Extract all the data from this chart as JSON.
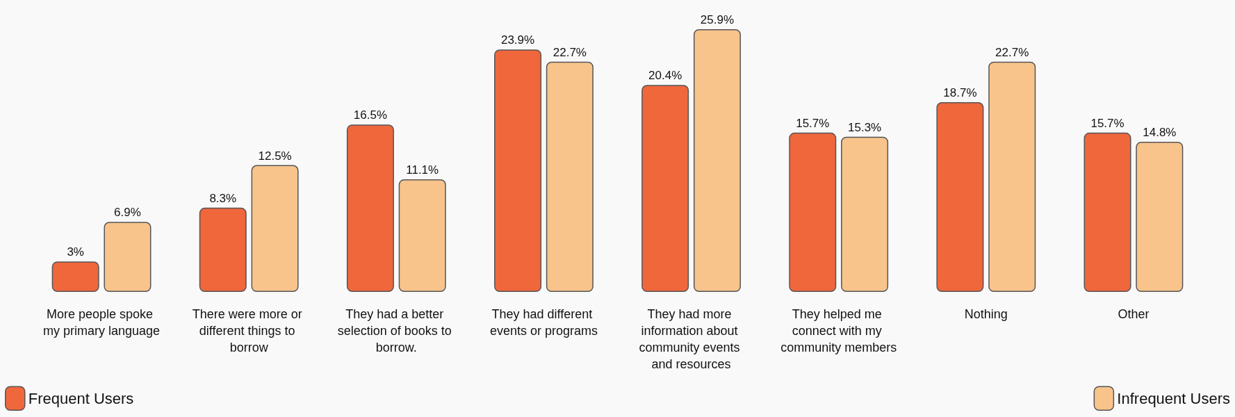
{
  "chart_data": {
    "type": "bar",
    "categories": [
      "More people spoke my primary language",
      "There were more or different things to borrow",
      "They had a better selection of books to borrow.",
      "They had different events or programs",
      "They had more information about community events and resources",
      "They helped me connect with my community members",
      "Nothing",
      "Other"
    ],
    "series": [
      {
        "name": "Frequent Users",
        "color": "#f0673c",
        "values": [
          3,
          8.3,
          16.5,
          23.9,
          20.4,
          15.7,
          18.7,
          15.7
        ],
        "value_labels": [
          "3%",
          "8.3%",
          "16.5%",
          "23.9%",
          "20.4%",
          "15.7%",
          "18.7%",
          "15.7%"
        ]
      },
      {
        "name": "Infrequent Users",
        "color": "#f8c48c",
        "values": [
          6.9,
          12.5,
          11.1,
          22.7,
          25.9,
          15.3,
          22.7,
          14.8
        ],
        "value_labels": [
          "6.9%",
          "12.5%",
          "11.1%",
          "22.7%",
          "25.9%",
          "15.3%",
          "22.7%",
          "14.8%"
        ]
      }
    ],
    "legend": "bottom"
  }
}
